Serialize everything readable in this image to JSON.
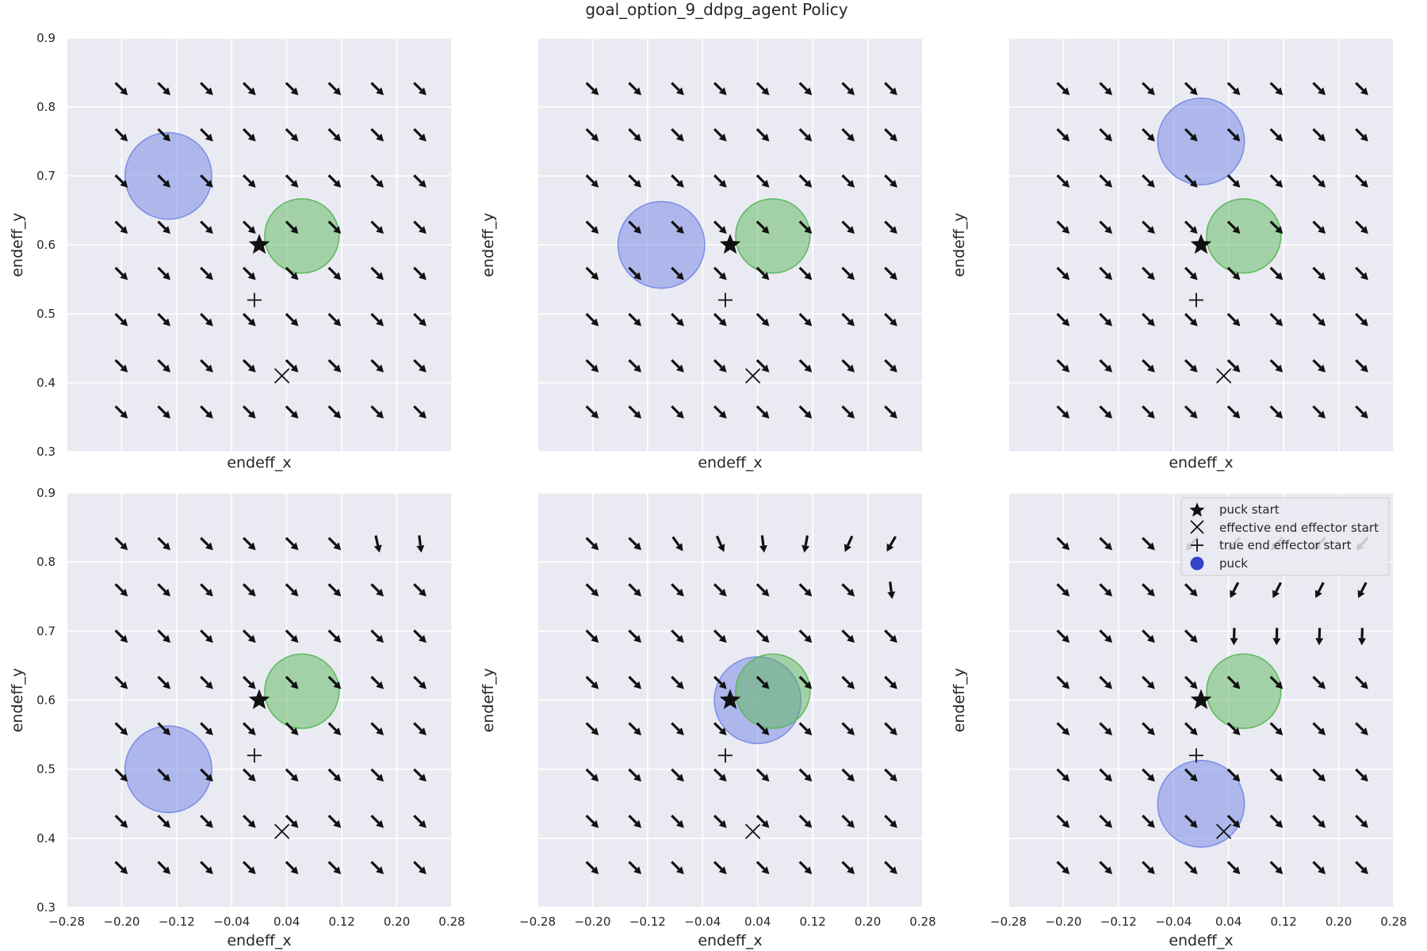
{
  "figure": {
    "title": "goal_option_9_ddpg_agent Policy"
  },
  "axes_common": {
    "xlabel": "endeff_x",
    "ylabel": "endeff_y",
    "xlim": [
      -0.28,
      0.28
    ],
    "ylim": [
      0.3,
      0.9
    ],
    "xticks": [
      -0.28,
      -0.2,
      -0.12,
      -0.04,
      0.04,
      0.12,
      0.2,
      0.28
    ],
    "xtick_labels": [
      "−0.28",
      "−0.20",
      "−0.12",
      "−0.04",
      "0.04",
      "0.12",
      "0.20",
      "0.28"
    ],
    "yticks": [
      0.3,
      0.4,
      0.5,
      0.6,
      0.7,
      0.8,
      0.9
    ],
    "ytick_labels": [
      "0.3",
      "0.4",
      "0.5",
      "0.6",
      "0.7",
      "0.8",
      "0.9"
    ],
    "background": "#eaeaf2",
    "grid": true,
    "grid_color": "#ffffff"
  },
  "legend": {
    "placement": "top-right (last subplot)",
    "entries": [
      {
        "label": "puck start",
        "marker": "star-icon"
      },
      {
        "label": "effective end effector start",
        "marker": "x-cross-icon"
      },
      {
        "label": "true end effector start",
        "marker": "plus-icon"
      },
      {
        "label": "puck",
        "marker": "blue-dot-icon",
        "color": "#3344cc"
      }
    ]
  },
  "colors": {
    "puck": "#7b8ce6",
    "goal": "#5cb85c",
    "arrow": "#111111"
  },
  "chart_data": {
    "type": "scatter",
    "subtype": "quiver",
    "grid_x": [
      -0.2,
      -0.138,
      -0.076,
      -0.014,
      0.048,
      0.11,
      0.172,
      0.234
    ],
    "grid_y": [
      0.357,
      0.424,
      0.491,
      0.558,
      0.625,
      0.692,
      0.759,
      0.826
    ],
    "puck_start": [
      0.0,
      0.6
    ],
    "effective_end_effector_start": [
      0.033,
      0.41
    ],
    "true_end_effector_start": [
      -0.007,
      0.52
    ],
    "goal": {
      "x": 0.062,
      "y": 0.613,
      "r": 0.06
    },
    "panels": [
      {
        "puck": {
          "x": -0.132,
          "y": 0.7,
          "r": 0.07
        },
        "arrows": "uniform"
      },
      {
        "puck": {
          "x": -0.1,
          "y": 0.6,
          "r": 0.07
        },
        "arrows": "uniform"
      },
      {
        "puck": {
          "x": 0.0,
          "y": 0.75,
          "r": 0.07
        },
        "arrows": "uniform"
      },
      {
        "puck": {
          "x": -0.132,
          "y": 0.5,
          "r": 0.07
        },
        "arrows": "top-right turns downward"
      },
      {
        "puck": {
          "x": 0.04,
          "y": 0.6,
          "r": 0.07
        },
        "arrows": "top rows turn downward"
      },
      {
        "puck": {
          "x": 0.0,
          "y": 0.45,
          "r": 0.07
        },
        "arrows": "top rows point down-left"
      }
    ]
  }
}
